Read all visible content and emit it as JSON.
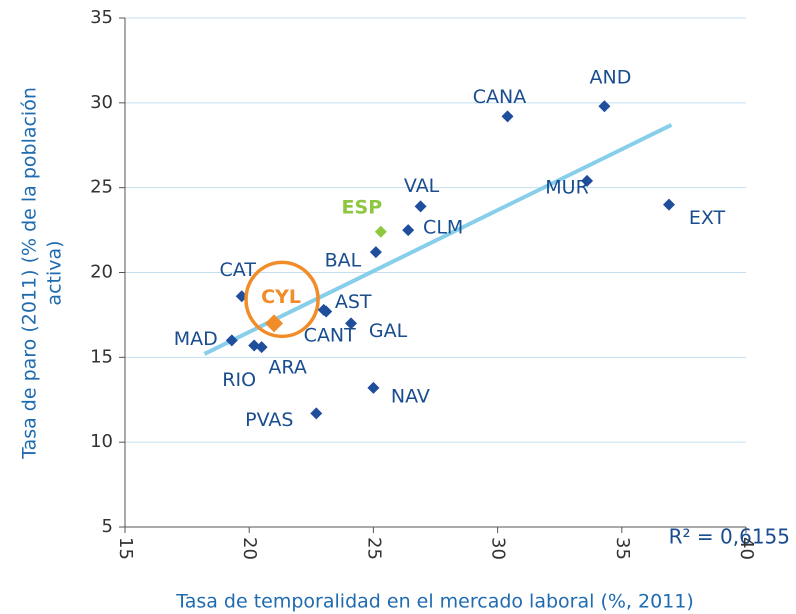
{
  "chart_data": {
    "type": "scatter",
    "x_label": "Tasa de temporalidad en el mercado laboral (%, 2011)",
    "y_label": [
      "Tasa de paro (2011) (% de la población",
      "activa)"
    ],
    "xlim": [
      15,
      40
    ],
    "xticks": [
      15,
      20,
      25,
      30,
      35,
      40
    ],
    "ylim": [
      5,
      35
    ],
    "yticks": [
      5,
      10,
      15,
      20,
      25,
      30,
      35
    ],
    "grid": true,
    "points": [
      {
        "label": "CANA",
        "x": 30.4,
        "y": 29.2,
        "color": "#1f4e9c"
      },
      {
        "label": "AND",
        "x": 34.3,
        "y": 29.8,
        "color": "#1f4e9c"
      },
      {
        "label": "MUR",
        "x": 33.6,
        "y": 25.4,
        "color": "#1f4e9c"
      },
      {
        "label": "EXT",
        "x": 36.9,
        "y": 24.0,
        "color": "#1f4e9c"
      },
      {
        "label": "VAL",
        "x": 26.9,
        "y": 23.9,
        "color": "#1f4e9c"
      },
      {
        "label": "ESP",
        "x": 25.3,
        "y": 22.4,
        "color": "#8dc63f"
      },
      {
        "label": "CLM",
        "x": 26.4,
        "y": 22.5,
        "color": "#1f4e9c"
      },
      {
        "label": "BAL",
        "x": 25.1,
        "y": 21.2,
        "color": "#1f4e9c"
      },
      {
        "label": "CAT",
        "x": 19.7,
        "y": 18.6,
        "color": "#1f4e9c"
      },
      {
        "label": "CYL",
        "x": 21.0,
        "y": 17.0,
        "color": "#f28c28"
      },
      {
        "label": "AST",
        "x": 23.1,
        "y": 17.7,
        "color": "#1f4e9c"
      },
      {
        "label": "CANT",
        "x": 23.0,
        "y": 17.8,
        "color": "#1f4e9c"
      },
      {
        "label": "GAL",
        "x": 24.1,
        "y": 17.0,
        "color": "#1f4e9c"
      },
      {
        "label": "MAD",
        "x": 19.3,
        "y": 16.0,
        "color": "#1f4e9c"
      },
      {
        "label": "RIO",
        "x": 20.2,
        "y": 15.7,
        "color": "#1f4e9c"
      },
      {
        "label": "ARA",
        "x": 20.5,
        "y": 15.6,
        "color": "#1f4e9c"
      },
      {
        "label": "NAV",
        "x": 25.0,
        "y": 13.2,
        "color": "#1f4e9c"
      },
      {
        "label": "PVAS",
        "x": 22.7,
        "y": 11.7,
        "color": "#1f4e9c"
      }
    ],
    "trendline": {
      "x": [
        18.2,
        37.0
      ],
      "y": [
        15.2,
        28.7
      ],
      "color": "#87ceeb"
    },
    "annotation": "R² = 0,6155"
  }
}
